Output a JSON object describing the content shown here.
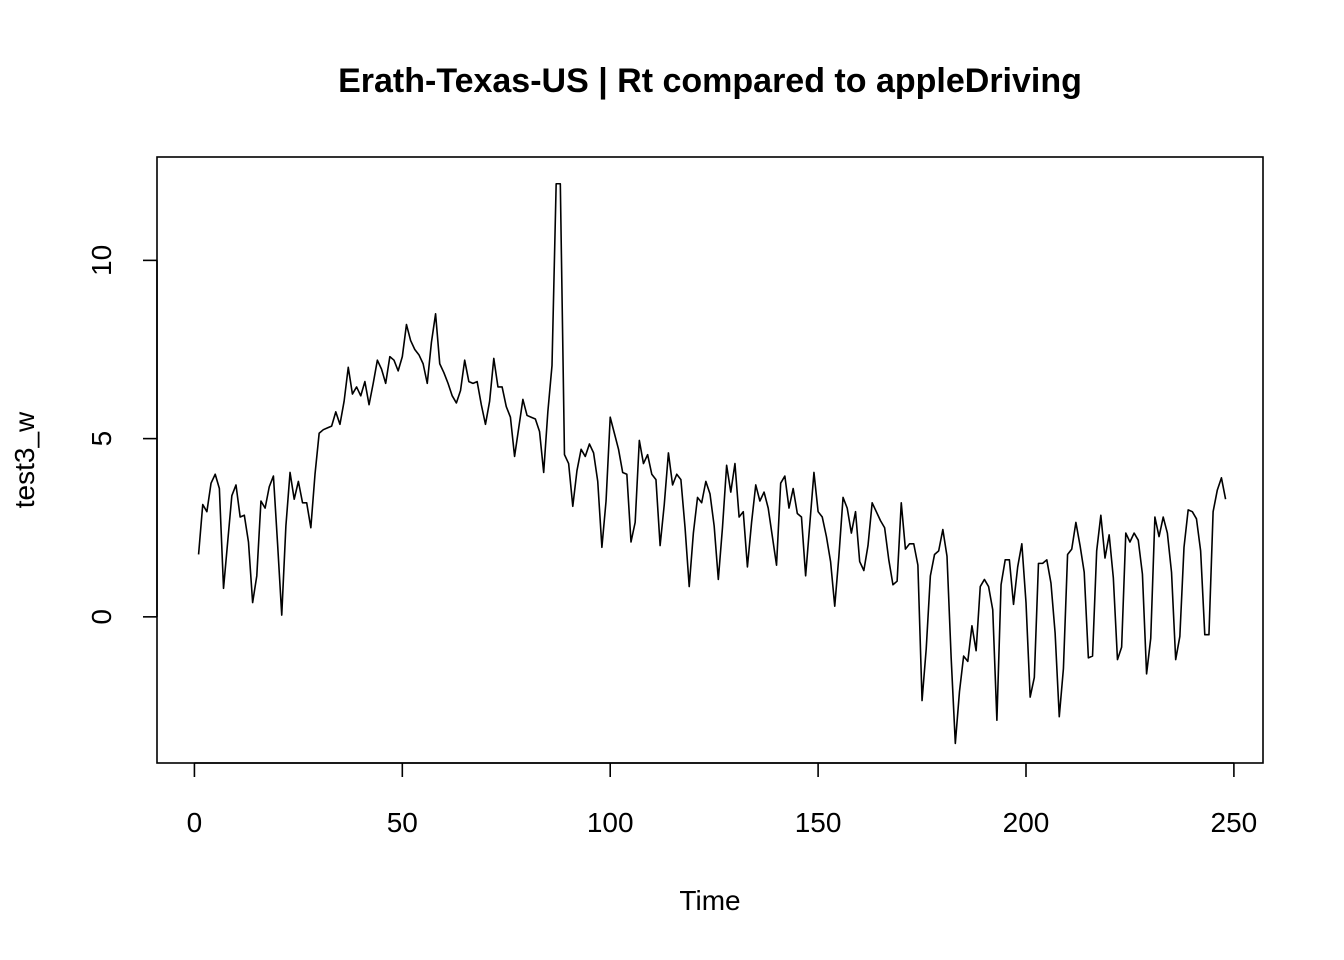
{
  "chart_data": {
    "type": "line",
    "title": "Erath-Texas-US | Rt compared to appleDriving",
    "xlabel": "Time",
    "ylabel": "test3_w",
    "xlim": [
      -9,
      257
    ],
    "ylim": [
      -4.1,
      12.9
    ],
    "xticks": [
      0,
      50,
      100,
      150,
      200,
      250
    ],
    "yticks": [
      0,
      5,
      10
    ],
    "grid": false,
    "legend": "none",
    "line_color": "#000000",
    "series": [
      {
        "x_start": 1,
        "values": [
          1.75,
          3.15,
          2.95,
          3.75,
          4.0,
          3.6,
          0.8,
          2.1,
          3.4,
          3.7,
          2.8,
          2.85,
          2.1,
          0.4,
          1.15,
          3.25,
          3.05,
          3.65,
          3.95,
          2.05,
          0.05,
          2.55,
          4.05,
          3.3,
          3.8,
          3.2,
          3.2,
          2.5,
          4.0,
          5.15,
          5.25,
          5.3,
          5.35,
          5.75,
          5.4,
          6.05,
          7.0,
          6.25,
          6.45,
          6.2,
          6.6,
          5.95,
          6.55,
          7.2,
          6.95,
          6.55,
          7.3,
          7.2,
          6.9,
          7.3,
          8.2,
          7.75,
          7.5,
          7.35,
          7.1,
          6.55,
          7.7,
          8.5,
          7.1,
          6.85,
          6.55,
          6.2,
          6.0,
          6.35,
          7.2,
          6.6,
          6.55,
          6.6,
          5.95,
          5.4,
          6.05,
          7.25,
          6.45,
          6.45,
          5.9,
          5.6,
          4.5,
          5.3,
          6.1,
          5.65,
          5.6,
          5.55,
          5.2,
          4.05,
          5.75,
          7.05,
          12.15,
          12.15,
          4.55,
          4.3,
          3.1,
          4.1,
          4.7,
          4.5,
          4.85,
          4.6,
          3.8,
          1.95,
          3.25,
          5.6,
          5.15,
          4.7,
          4.05,
          4.0,
          2.1,
          2.65,
          4.95,
          4.3,
          4.55,
          4.0,
          3.85,
          2.0,
          3.15,
          4.6,
          3.7,
          4.0,
          3.85,
          2.5,
          0.85,
          2.35,
          3.35,
          3.2,
          3.8,
          3.45,
          2.55,
          1.05,
          2.5,
          4.25,
          3.5,
          4.3,
          2.8,
          2.95,
          1.4,
          2.65,
          3.7,
          3.25,
          3.5,
          3.05,
          2.25,
          1.45,
          3.75,
          3.95,
          3.05,
          3.6,
          2.9,
          2.8,
          1.15,
          2.6,
          4.05,
          2.95,
          2.8,
          2.25,
          1.55,
          0.3,
          1.7,
          3.35,
          3.05,
          2.35,
          2.95,
          1.55,
          1.3,
          2.0,
          3.2,
          2.95,
          2.7,
          2.5,
          1.6,
          0.9,
          1.0,
          3.2,
          1.9,
          2.05,
          2.05,
          1.45,
          -2.35,
          -0.9,
          1.15,
          1.75,
          1.85,
          2.45,
          1.7,
          -1.15,
          -3.55,
          -2.1,
          -1.1,
          -1.25,
          -0.25,
          -0.95,
          0.85,
          1.05,
          0.85,
          0.2,
          -2.9,
          0.9,
          1.6,
          1.6,
          0.35,
          1.4,
          2.05,
          0.4,
          -2.25,
          -1.7,
          1.5,
          1.5,
          1.6,
          0.95,
          -0.45,
          -2.8,
          -1.45,
          1.75,
          1.9,
          2.65,
          2.0,
          1.25,
          -1.15,
          -1.1,
          1.85,
          2.85,
          1.65,
          2.3,
          1.1,
          -1.2,
          -0.85,
          2.35,
          2.1,
          2.35,
          2.15,
          1.2,
          -1.6,
          -0.6,
          2.8,
          2.25,
          2.8,
          2.35,
          1.25,
          -1.2,
          -0.55,
          1.95,
          3.0,
          2.95,
          2.75,
          1.85,
          -0.5,
          -0.5,
          2.95,
          3.55,
          3.9,
          3.3
        ]
      }
    ]
  }
}
